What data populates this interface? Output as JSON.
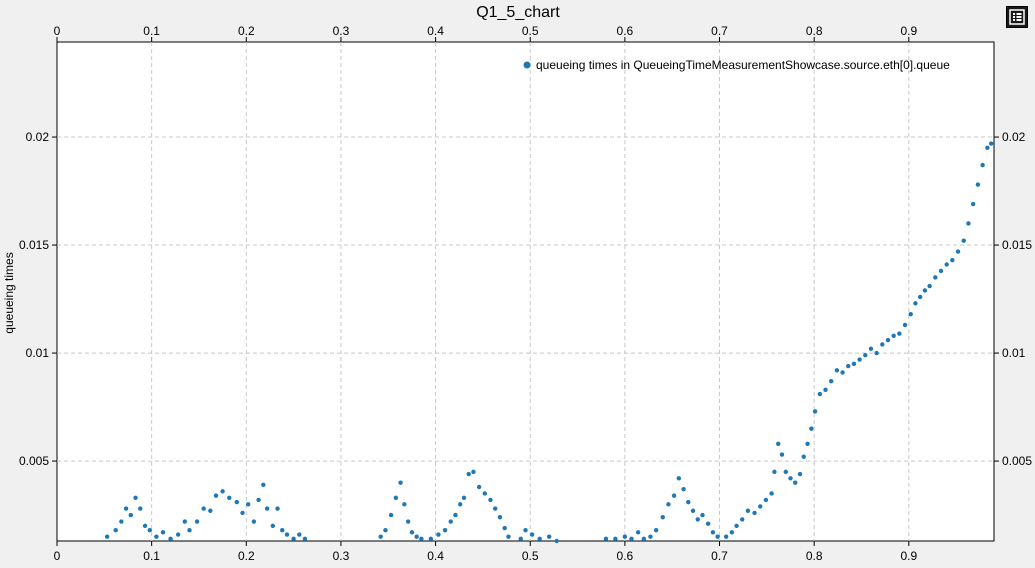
{
  "window": {
    "menu_icon": "list-icon"
  },
  "chart_data": {
    "type": "scatter",
    "title": "Q1_5_chart",
    "xlabel": "",
    "ylabel": "queueing times",
    "xlim": [
      0,
      0.99
    ],
    "ylim": [
      0.0013,
      0.0244
    ],
    "x_ticks": [
      "0",
      "0.1",
      "0.2",
      "0.3",
      "0.4",
      "0.5",
      "0.6",
      "0.7",
      "0.8",
      "0.9"
    ],
    "y_ticks": [
      "0.005",
      "0.01",
      "0.015",
      "0.02"
    ],
    "grid": true,
    "legend_position": "top-right",
    "series": [
      {
        "name": "queueing times in QueueingTimeMeasurementShowcase.source.eth[0].queue",
        "color": "#1f77b4",
        "points": [
          [
            0.053,
            0.0015
          ],
          [
            0.062,
            0.0018
          ],
          [
            0.068,
            0.0022
          ],
          [
            0.073,
            0.0028
          ],
          [
            0.078,
            0.0025
          ],
          [
            0.083,
            0.0033
          ],
          [
            0.088,
            0.0028
          ],
          [
            0.093,
            0.002
          ],
          [
            0.098,
            0.0018
          ],
          [
            0.105,
            0.0015
          ],
          [
            0.112,
            0.0017
          ],
          [
            0.12,
            0.0014
          ],
          [
            0.128,
            0.0016
          ],
          [
            0.135,
            0.0022
          ],
          [
            0.14,
            0.0018
          ],
          [
            0.148,
            0.0022
          ],
          [
            0.155,
            0.0028
          ],
          [
            0.162,
            0.0027
          ],
          [
            0.168,
            0.0034
          ],
          [
            0.175,
            0.0036
          ],
          [
            0.182,
            0.0033
          ],
          [
            0.19,
            0.0031
          ],
          [
            0.196,
            0.0026
          ],
          [
            0.202,
            0.003
          ],
          [
            0.208,
            0.0022
          ],
          [
            0.213,
            0.0032
          ],
          [
            0.218,
            0.0039
          ],
          [
            0.222,
            0.0028
          ],
          [
            0.228,
            0.002
          ],
          [
            0.233,
            0.0028
          ],
          [
            0.238,
            0.0018
          ],
          [
            0.243,
            0.0016
          ],
          [
            0.25,
            0.0014
          ],
          [
            0.256,
            0.0016
          ],
          [
            0.262,
            0.0014
          ],
          [
            0.342,
            0.0015
          ],
          [
            0.347,
            0.0018
          ],
          [
            0.353,
            0.0025
          ],
          [
            0.358,
            0.0033
          ],
          [
            0.363,
            0.004
          ],
          [
            0.367,
            0.003
          ],
          [
            0.371,
            0.0022
          ],
          [
            0.375,
            0.0017
          ],
          [
            0.38,
            0.0015
          ],
          [
            0.385,
            0.0014
          ],
          [
            0.395,
            0.0014
          ],
          [
            0.403,
            0.0016
          ],
          [
            0.41,
            0.0018
          ],
          [
            0.416,
            0.0022
          ],
          [
            0.421,
            0.0025
          ],
          [
            0.426,
            0.003
          ],
          [
            0.43,
            0.0033
          ],
          [
            0.435,
            0.0044
          ],
          [
            0.44,
            0.0045
          ],
          [
            0.446,
            0.0038
          ],
          [
            0.452,
            0.0035
          ],
          [
            0.458,
            0.0032
          ],
          [
            0.463,
            0.0028
          ],
          [
            0.468,
            0.0024
          ],
          [
            0.473,
            0.0019
          ],
          [
            0.477,
            0.0015
          ],
          [
            0.49,
            0.0014
          ],
          [
            0.495,
            0.0018
          ],
          [
            0.502,
            0.0016
          ],
          [
            0.51,
            0.0014
          ],
          [
            0.52,
            0.0015
          ],
          [
            0.528,
            0.0013
          ],
          [
            0.58,
            0.0014
          ],
          [
            0.59,
            0.0014
          ],
          [
            0.6,
            0.0015
          ],
          [
            0.607,
            0.0014
          ],
          [
            0.614,
            0.0017
          ],
          [
            0.62,
            0.0014
          ],
          [
            0.627,
            0.0015
          ],
          [
            0.633,
            0.0018
          ],
          [
            0.64,
            0.0024
          ],
          [
            0.646,
            0.003
          ],
          [
            0.652,
            0.0034
          ],
          [
            0.657,
            0.0042
          ],
          [
            0.662,
            0.0037
          ],
          [
            0.667,
            0.0031
          ],
          [
            0.672,
            0.0027
          ],
          [
            0.677,
            0.0023
          ],
          [
            0.682,
            0.0025
          ],
          [
            0.688,
            0.0021
          ],
          [
            0.693,
            0.0017
          ],
          [
            0.698,
            0.0015
          ],
          [
            0.707,
            0.0015
          ],
          [
            0.713,
            0.0017
          ],
          [
            0.718,
            0.002
          ],
          [
            0.724,
            0.0023
          ],
          [
            0.73,
            0.0027
          ],
          [
            0.737,
            0.0026
          ],
          [
            0.743,
            0.0029
          ],
          [
            0.749,
            0.0032
          ],
          [
            0.755,
            0.0035
          ],
          [
            0.758,
            0.0045
          ],
          [
            0.762,
            0.0058
          ],
          [
            0.766,
            0.0053
          ],
          [
            0.77,
            0.0045
          ],
          [
            0.775,
            0.0042
          ],
          [
            0.78,
            0.004
          ],
          [
            0.785,
            0.0044
          ],
          [
            0.789,
            0.0052
          ],
          [
            0.793,
            0.0058
          ],
          [
            0.797,
            0.0065
          ],
          [
            0.801,
            0.0073
          ],
          [
            0.806,
            0.0081
          ],
          [
            0.812,
            0.0083
          ],
          [
            0.818,
            0.0087
          ],
          [
            0.824,
            0.0092
          ],
          [
            0.83,
            0.0091
          ],
          [
            0.836,
            0.0094
          ],
          [
            0.842,
            0.0095
          ],
          [
            0.848,
            0.0097
          ],
          [
            0.854,
            0.0099
          ],
          [
            0.86,
            0.0102
          ],
          [
            0.866,
            0.01
          ],
          [
            0.872,
            0.0104
          ],
          [
            0.878,
            0.0106
          ],
          [
            0.884,
            0.0108
          ],
          [
            0.89,
            0.0109
          ],
          [
            0.896,
            0.0113
          ],
          [
            0.902,
            0.0118
          ],
          [
            0.907,
            0.0123
          ],
          [
            0.912,
            0.0126
          ],
          [
            0.917,
            0.0129
          ],
          [
            0.922,
            0.0131
          ],
          [
            0.928,
            0.0135
          ],
          [
            0.934,
            0.0138
          ],
          [
            0.94,
            0.0141
          ],
          [
            0.946,
            0.0143
          ],
          [
            0.952,
            0.0147
          ],
          [
            0.958,
            0.0152
          ],
          [
            0.963,
            0.016
          ],
          [
            0.968,
            0.0169
          ],
          [
            0.973,
            0.0178
          ],
          [
            0.978,
            0.0187
          ],
          [
            0.983,
            0.0195
          ],
          [
            0.987,
            0.0197
          ]
        ]
      }
    ]
  }
}
